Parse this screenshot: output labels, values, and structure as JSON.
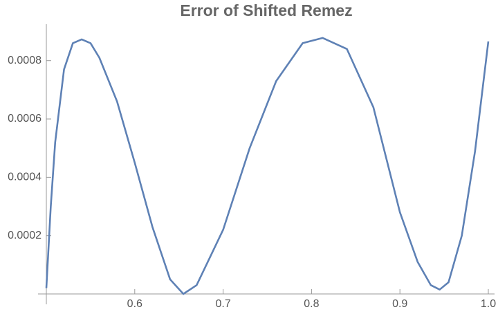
{
  "chart_data": {
    "type": "line",
    "title": "Error of Shifted Remez",
    "x": [
      0.5,
      0.505,
      0.51,
      0.52,
      0.53,
      0.54,
      0.55,
      0.56,
      0.58,
      0.6,
      0.62,
      0.64,
      0.655,
      0.67,
      0.7,
      0.73,
      0.76,
      0.79,
      0.8125,
      0.84,
      0.87,
      0.9,
      0.92,
      0.935,
      0.945,
      0.955,
      0.97,
      0.985,
      1.0
    ],
    "series": [
      {
        "color": "#5e81b5",
        "values": [
          2e-05,
          0.0003,
          0.00052,
          0.00077,
          0.00086,
          0.000873,
          0.00086,
          0.00081,
          0.00066,
          0.00045,
          0.00023,
          5e-05,
          0.0,
          3e-05,
          0.00022,
          0.0005,
          0.00073,
          0.00086,
          0.000878,
          0.00084,
          0.00064,
          0.00028,
          0.00011,
          3e-05,
          1.5e-05,
          4e-05,
          0.0002,
          0.00049,
          0.000866
        ]
      }
    ],
    "xlim": [
      0.5,
      1.0
    ],
    "xticks": [
      0.6,
      0.7,
      0.8,
      0.9,
      {
        "value": 1.0,
        "label": "1.0"
      }
    ],
    "ylim": [
      0,
      0.000925
    ],
    "yticks": [
      0.0002,
      0.0004,
      0.0006,
      0.0008
    ]
  }
}
